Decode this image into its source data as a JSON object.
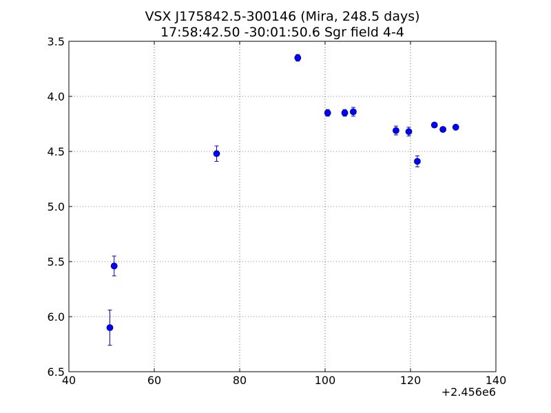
{
  "chart_data": {
    "type": "scatter",
    "title": "VSX J175842.5-300146 (Mira, 248.5 days)",
    "subtitle": "17:58:42.50 -30:01:50.6 Sgr field 4-4",
    "xlabel": "",
    "ylabel": "",
    "x_offset_label": "+2.456e6",
    "x_offset": 2456000,
    "xlim": [
      40,
      140
    ],
    "ylim": [
      6.5,
      3.5
    ],
    "y_inverted": true,
    "xticks": [
      40,
      60,
      80,
      100,
      120,
      140
    ],
    "xtick_labels": [
      "40",
      "60",
      "80",
      "100",
      "120",
      "140"
    ],
    "yticks": [
      3.5,
      4.0,
      4.5,
      5.0,
      5.5,
      6.0,
      6.5
    ],
    "ytick_labels": [
      "3.5",
      "4.0",
      "4.5",
      "5.0",
      "5.5",
      "6.0",
      "6.5"
    ],
    "grid": true,
    "marker_color": "#0000ff",
    "errorbar_color": "#0000cc",
    "series": [
      {
        "points": [
          {
            "x": 49.6,
            "y": 6.1,
            "err": 0.16
          },
          {
            "x": 50.6,
            "y": 5.54,
            "err": 0.09
          },
          {
            "x": 74.6,
            "y": 4.52,
            "err": 0.07
          },
          {
            "x": 93.6,
            "y": 3.65,
            "err": 0.03
          },
          {
            "x": 100.6,
            "y": 4.15,
            "err": 0.03
          },
          {
            "x": 104.6,
            "y": 4.15,
            "err": 0.03
          },
          {
            "x": 106.6,
            "y": 4.14,
            "err": 0.04
          },
          {
            "x": 116.6,
            "y": 4.31,
            "err": 0.04
          },
          {
            "x": 119.6,
            "y": 4.32,
            "err": 0.04
          },
          {
            "x": 121.6,
            "y": 4.59,
            "err": 0.05
          },
          {
            "x": 125.6,
            "y": 4.26,
            "err": 0.02
          },
          {
            "x": 127.6,
            "y": 4.3,
            "err": 0.02
          },
          {
            "x": 130.6,
            "y": 4.28,
            "err": 0.02
          }
        ]
      }
    ]
  }
}
